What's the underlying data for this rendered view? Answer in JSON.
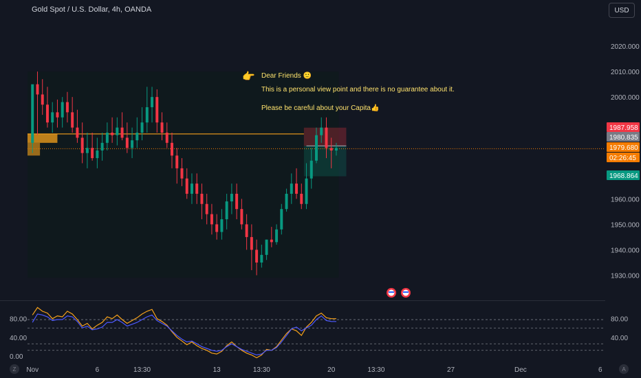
{
  "header": {
    "title": "Gold Spot / U.S. Dollar, 4h, OANDA",
    "currency": "USD"
  },
  "annotation": {
    "line1": "Dear Friends 🙂",
    "line2": "This is a personal view point and there is no guarantee about it.",
    "line3": "Please be careful about your Capita👍"
  },
  "price_tags": [
    {
      "label": "1987.958",
      "color": "#f23645",
      "text_color": "#ffffff"
    },
    {
      "label": "1980.835",
      "color": "#787b86",
      "text_color": "#ffffff"
    },
    {
      "label": "1979.680",
      "color": "#f57c00",
      "text_color": "#ffffff"
    },
    {
      "label": "02:26:45",
      "color": "#f57c00",
      "text_color": "#ffffff"
    },
    {
      "label": "1968.864",
      "color": "#089981",
      "text_color": "#ffffff"
    }
  ],
  "buttons": {
    "zoom_label": "Z",
    "auto_label": "A"
  },
  "chart_data": {
    "type": "candlestick",
    "title": "Gold Spot / U.S. Dollar, 4h, OANDA",
    "y_ticks": [
      1930,
      1940,
      1950,
      1960,
      1970,
      1980,
      1990,
      2000,
      2010,
      2020
    ],
    "y_tick_labels": [
      "1930.000",
      "1940.000",
      "1950.000",
      "1960.000",
      "",
      "",
      "",
      "2000.000",
      "2010.000",
      "2020.000"
    ],
    "ylim": [
      1921.5,
      2030
    ],
    "x_tick_labels": [
      "Nov",
      "6",
      "13:30",
      "13",
      "13:30",
      "20",
      "13:30",
      "27",
      "Dec",
      "6"
    ],
    "x_ticks": [
      0,
      13,
      22,
      37,
      46,
      60,
      69,
      84,
      98,
      114
    ],
    "candle_count": 62,
    "xlim": [
      -1,
      115
    ],
    "candles": {
      "open": [
        1982,
        2005,
        2001,
        1997,
        1990,
        1994,
        1992,
        1998,
        1994,
        1988,
        1984,
        1978,
        1980,
        1976,
        1979,
        1982,
        1986,
        1985,
        1988,
        1984,
        1980,
        1983,
        1986,
        1990,
        1996,
        2000,
        1990,
        1986,
        1982,
        1977,
        1972,
        1968,
        1962,
        1966,
        1962,
        1958,
        1954,
        1950,
        1947,
        1952,
        1959,
        1962,
        1956,
        1950,
        1945,
        1940,
        1935,
        1938,
        1944,
        1943,
        1948,
        1956,
        1962,
        1966,
        1962,
        1958,
        1968,
        1975,
        1985,
        1988,
        1980,
        1979
      ],
      "high": [
        1992,
        2010,
        2007,
        2004,
        1998,
        1999,
        2000,
        2002,
        2000,
        1995,
        1990,
        1986,
        1986,
        1984,
        1986,
        1990,
        1992,
        1992,
        1994,
        1990,
        1988,
        1992,
        1996,
        2004,
        2004,
        2003,
        1994,
        1990,
        1986,
        1980,
        1976,
        1972,
        1970,
        1970,
        1966,
        1962,
        1958,
        1954,
        1956,
        1962,
        1966,
        1966,
        1960,
        1954,
        1950,
        1944,
        1942,
        1944,
        1949,
        1950,
        1958,
        1964,
        1970,
        1972,
        1966,
        1974,
        1980,
        1988,
        1992,
        1992,
        1984,
        1982
      ],
      "low": [
        1978,
        1985,
        1993,
        1988,
        1986,
        1988,
        1988,
        1990,
        1986,
        1982,
        1974,
        1972,
        1975,
        1972,
        1975,
        1979,
        1982,
        1981,
        1983,
        1978,
        1976,
        1980,
        1983,
        1986,
        1990,
        1986,
        1983,
        1980,
        1972,
        1966,
        1965,
        1960,
        1958,
        1958,
        1952,
        1950,
        1946,
        1944,
        1944,
        1948,
        1954,
        1952,
        1948,
        1940,
        1932,
        1930,
        1933,
        1936,
        1941,
        1942,
        1946,
        1955,
        1958,
        1960,
        1956,
        1956,
        1964,
        1974,
        1982,
        1976,
        1972,
        1977
      ],
      "close": [
        2005,
        2001,
        1997,
        1990,
        1994,
        1992,
        1998,
        1994,
        1988,
        1984,
        1978,
        1980,
        1976,
        1979,
        1982,
        1986,
        1985,
        1988,
        1984,
        1980,
        1983,
        1986,
        1990,
        1996,
        2000,
        1990,
        1986,
        1982,
        1977,
        1972,
        1968,
        1962,
        1966,
        1962,
        1958,
        1954,
        1950,
        1947,
        1952,
        1959,
        1962,
        1956,
        1950,
        1945,
        1940,
        1935,
        1938,
        1944,
        1943,
        1948,
        1956,
        1962,
        1966,
        1962,
        1958,
        1968,
        1975,
        1985,
        1988,
        1980,
        1979,
        1980
      ]
    },
    "horizontal_lines": [
      1985.5,
      1979.7
    ],
    "trade_box": {
      "entry": 1980.8,
      "stop": 1987.958,
      "target": 1968.864
    },
    "supply_zone": [
      1985.5,
      1982
    ],
    "indicator": {
      "y_tick_labels_left": [
        "80.00",
        "40.00",
        "0.00"
      ],
      "y_tick_labels_right": [
        "80.00",
        "40.00"
      ],
      "y_ticks_left": [
        80,
        40,
        0
      ],
      "y_ticks_right": [
        80,
        40
      ],
      "ylim": [
        -15,
        115
      ],
      "series": [
        {
          "color": "#f7a21b",
          "values": [
            88,
            104,
            96,
            92,
            80,
            86,
            84,
            96,
            90,
            78,
            64,
            70,
            58,
            66,
            72,
            84,
            80,
            88,
            78,
            70,
            76,
            82,
            90,
            96,
            100,
            80,
            74,
            66,
            52,
            40,
            32,
            24,
            30,
            22,
            16,
            12,
            6,
            4,
            10,
            22,
            30,
            20,
            12,
            6,
            2,
            -4,
            2,
            14,
            12,
            20,
            34,
            48,
            58,
            54,
            44,
            62,
            72,
            86,
            92,
            82,
            80,
            80
          ]
        },
        {
          "color": "#4d59ff",
          "values": [
            72,
            90,
            88,
            84,
            76,
            78,
            78,
            86,
            84,
            74,
            60,
            64,
            56,
            58,
            62,
            72,
            72,
            78,
            72,
            64,
            68,
            72,
            78,
            84,
            88,
            76,
            70,
            64,
            54,
            44,
            36,
            30,
            32,
            26,
            20,
            16,
            12,
            10,
            12,
            20,
            26,
            20,
            14,
            10,
            6,
            2,
            4,
            12,
            12,
            18,
            30,
            44,
            58,
            62,
            54,
            60,
            66,
            78,
            86,
            76,
            74,
            74
          ]
        }
      ],
      "levels": [
        78,
        60,
        26,
        12
      ]
    }
  }
}
